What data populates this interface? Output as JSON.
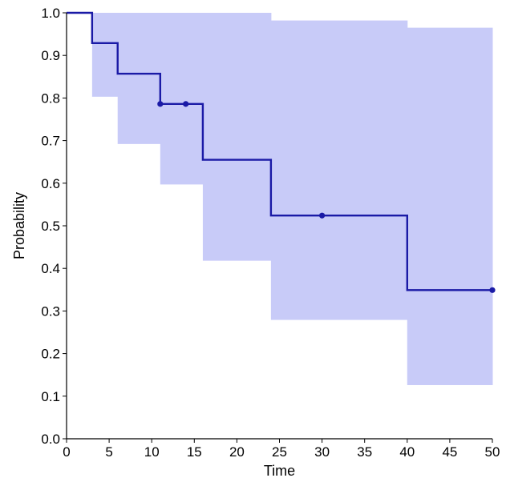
{
  "chart_data": {
    "type": "line",
    "title": "",
    "xlabel": "Time",
    "ylabel": "Probability",
    "xlim": [
      0,
      50
    ],
    "ylim": [
      0,
      1
    ],
    "x_ticks": [
      0,
      5,
      10,
      15,
      20,
      25,
      30,
      35,
      40,
      45,
      50
    ],
    "x_tick_labels": [
      "0",
      "5",
      "10",
      "15",
      "20",
      "25",
      "30",
      "35",
      "40",
      "45",
      "50"
    ],
    "y_ticks": [
      0,
      0.1,
      0.2,
      0.3,
      0.4,
      0.5,
      0.6,
      0.7,
      0.8,
      0.9,
      1.0
    ],
    "y_tick_labels": [
      "0.0",
      "0.1",
      "0.2",
      "0.3",
      "0.4",
      "0.5",
      "0.6",
      "0.7",
      "0.8",
      "0.9",
      "1.0"
    ],
    "grid": false,
    "series": [
      {
        "step": "post",
        "color": "#1a1aa6",
        "x": [
          0,
          3,
          6,
          11,
          16,
          24,
          40,
          50
        ],
        "y": [
          1.0,
          0.929,
          0.857,
          0.786,
          0.655,
          0.524,
          0.349,
          0.349
        ]
      }
    ],
    "censored_points": {
      "color": "#1a1aa6",
      "x": [
        11,
        14,
        30,
        50
      ],
      "y": [
        0.786,
        0.786,
        0.524,
        0.349
      ]
    },
    "confidence_band": {
      "color": "#c8cbf8",
      "x": [
        3,
        6,
        11,
        16,
        24,
        40,
        50
      ],
      "lower": [
        0.803,
        0.692,
        0.597,
        0.418,
        0.279,
        0.126,
        0.126
      ],
      "upper": [
        1.0,
        1.0,
        1.0,
        1.0,
        0.982,
        0.965,
        0.965
      ]
    }
  }
}
